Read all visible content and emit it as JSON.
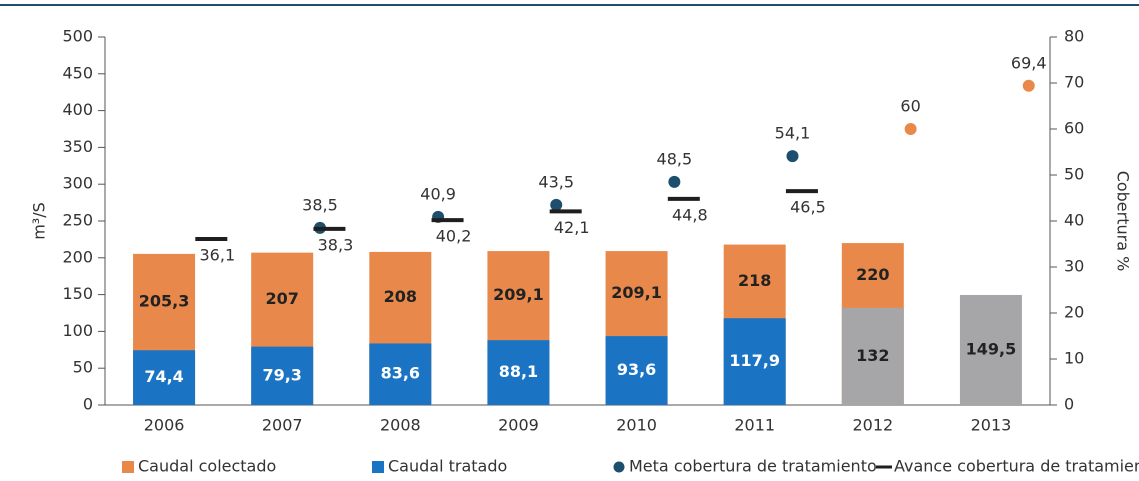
{
  "chart_data": {
    "type": "bar",
    "categories": [
      "2006",
      "2007",
      "2008",
      "2009",
      "2010",
      "2011",
      "2012",
      "2013"
    ],
    "series": [
      {
        "name": "Caudal colectado",
        "type": "bar",
        "color": "#e8894b",
        "values": [
          205.3,
          207,
          208,
          209.1,
          209.1,
          218,
          220,
          null
        ],
        "value_labels": [
          "205,3",
          "207",
          "208",
          "209,1",
          "209,1",
          "218",
          "220",
          null
        ]
      },
      {
        "name": "Caudal tratado",
        "type": "bar",
        "color": "#1b74c3",
        "colors": [
          "#1b74c3",
          "#1b74c3",
          "#1b74c3",
          "#1b74c3",
          "#1b74c3",
          "#1b74c3",
          "#a6a6a8",
          "#a6a6a8"
        ],
        "values": [
          74.4,
          79.3,
          83.6,
          88.1,
          93.6,
          117.9,
          132,
          149.5
        ],
        "value_labels": [
          "74,4",
          "79,3",
          "83,6",
          "88,1",
          "93,6",
          "117,9",
          "132",
          "149,5"
        ]
      },
      {
        "name": "Meta cobertura de tratamiento",
        "type": "scatter",
        "axis": "y2",
        "color": "#1d4e6e",
        "colors": [
          "#1d4e6e",
          "#1d4e6e",
          "#1d4e6e",
          "#1d4e6e",
          "#1d4e6e",
          "#1d4e6e",
          "#e8894b",
          "#e8894b"
        ],
        "values": [
          null,
          38.5,
          40.9,
          43.5,
          48.5,
          54.1,
          60,
          69.4
        ],
        "value_labels": [
          null,
          "38,5",
          "40,9",
          "43,5",
          "48,5",
          "54,1",
          "60",
          "69,4"
        ]
      },
      {
        "name": "Avance cobertura de tratamiento",
        "type": "dash",
        "axis": "y2",
        "color": "#1e1e1e",
        "values": [
          36.1,
          38.3,
          40.2,
          42.1,
          44.8,
          46.5,
          null,
          null
        ],
        "value_labels": [
          "36,1",
          "38,3",
          "40,2",
          "42,1",
          "44,8",
          "46,5",
          null,
          null
        ]
      }
    ],
    "ylabel": "m³/S",
    "y2label": "Cobertura %",
    "ylim": [
      0,
      500
    ],
    "yticks": [
      0,
      50,
      100,
      150,
      200,
      250,
      300,
      350,
      400,
      450,
      500
    ],
    "y2lim": [
      0,
      80
    ],
    "y2ticks": [
      0,
      10,
      20,
      30,
      40,
      50,
      60,
      70,
      80
    ]
  }
}
